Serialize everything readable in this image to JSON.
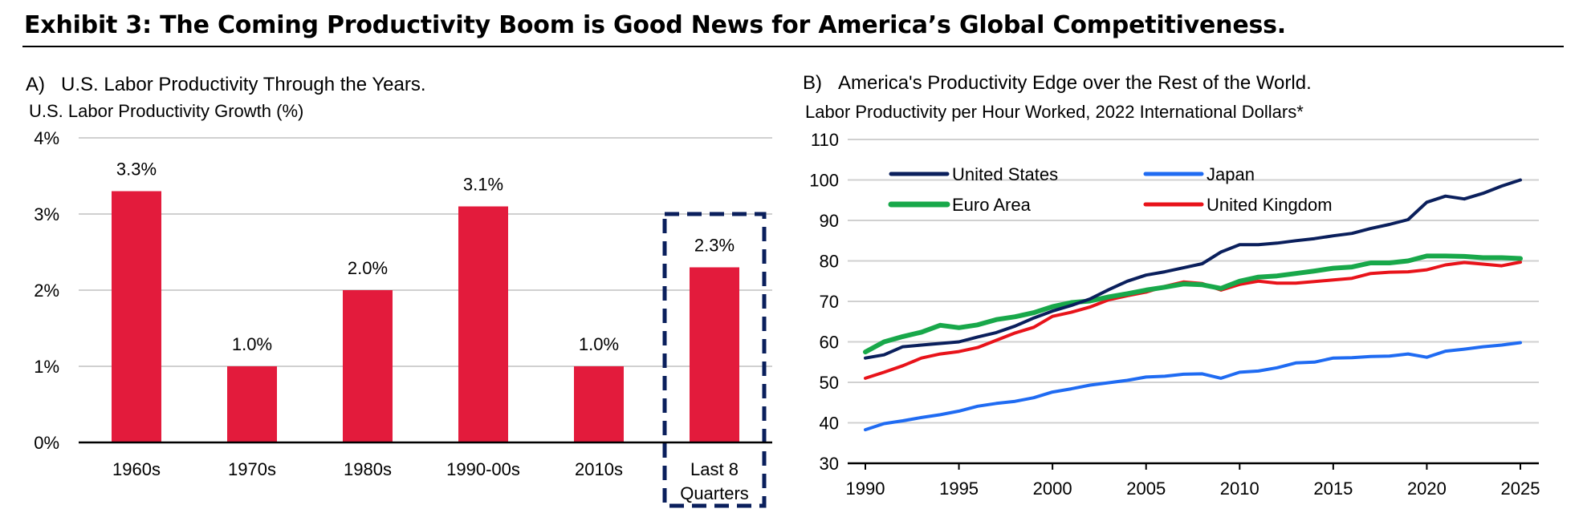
{
  "exhibit": {
    "title": "Exhibit 3: The Coming Productivity Boom is Good News for America’s Global Competitiveness."
  },
  "colors": {
    "bar": "#e31b3c",
    "us": "#0a1f5c",
    "japan": "#1f6bf2",
    "euro": "#18a84a",
    "uk": "#e8131a",
    "highlight": "#0a1f5c"
  },
  "panel_a": {
    "label": "A)",
    "title": "U.S. Labor Productivity Through the Years.",
    "subtitle": "U.S. Labor Productivity Growth (%)"
  },
  "panel_b": {
    "label": "B)",
    "title": "America's Productivity Edge over the Rest of the World.",
    "subtitle": "Labor Productivity per Hour Worked, 2022 International Dollars*"
  },
  "chart_data": [
    {
      "type": "bar",
      "title": "U.S. Labor Productivity Through the Years.",
      "ylabel": "U.S. Labor Productivity Growth (%)",
      "categories": [
        [
          "1960s"
        ],
        [
          "1970s"
        ],
        [
          "1980s"
        ],
        [
          "1990-00s"
        ],
        [
          "2010s"
        ],
        [
          "Last 8",
          "Quarters"
        ]
      ],
      "values": [
        3.3,
        1.0,
        2.0,
        3.1,
        1.0,
        2.3
      ],
      "data_labels": [
        "3.3%",
        "1.0%",
        "2.0%",
        "3.1%",
        "1.0%",
        "2.3%"
      ],
      "ylim": [
        0,
        4
      ],
      "yticks": [
        0,
        1,
        2,
        3,
        4
      ],
      "ytick_labels": [
        "0%",
        "1%",
        "2%",
        "3%",
        "4%"
      ],
      "highlighted_category": "Last 8 Quarters",
      "grid": true
    },
    {
      "type": "line",
      "title": "America's Productivity Edge over the Rest of the World.",
      "ylabel": "Labor Productivity per Hour Worked, 2022 International Dollars*",
      "x": [
        1990,
        1991,
        1992,
        1993,
        1994,
        1995,
        1996,
        1997,
        1998,
        1999,
        2000,
        2001,
        2002,
        2003,
        2004,
        2005,
        2006,
        2007,
        2008,
        2009,
        2010,
        2011,
        2012,
        2013,
        2014,
        2015,
        2016,
        2017,
        2018,
        2019,
        2020,
        2021,
        2022,
        2023,
        2024,
        2025
      ],
      "series": [
        {
          "name": "United States",
          "color_key": "us",
          "values": [
            56,
            56.8,
            58.8,
            59.2,
            59.6,
            60,
            61.2,
            62.3,
            63.9,
            65.9,
            67.6,
            69,
            70.6,
            72.9,
            75,
            76.5,
            77.3,
            78.3,
            79.3,
            82.2,
            84,
            84,
            84.4,
            85,
            85.5,
            86.2,
            86.8,
            88,
            89,
            90.2,
            94.5,
            96,
            95.3,
            96.7,
            98.5,
            100
          ]
        },
        {
          "name": "Japan",
          "color_key": "japan",
          "values": [
            38.3,
            39.8,
            40.5,
            41.3,
            42,
            42.9,
            44.1,
            44.8,
            45.3,
            46.2,
            47.6,
            48.4,
            49.3,
            49.9,
            50.5,
            51.3,
            51.5,
            52,
            52.1,
            51,
            52.5,
            52.8,
            53.6,
            54.8,
            55,
            56,
            56.1,
            56.4,
            56.5,
            57,
            56.2,
            57.7,
            58.2,
            58.8,
            59.2,
            59.8
          ]
        },
        {
          "name": "Euro Area",
          "color_key": "euro",
          "values": [
            57.5,
            60,
            61.3,
            62.4,
            64.1,
            63.5,
            64.2,
            65.5,
            66.2,
            67.2,
            68.7,
            69.7,
            70.1,
            71.1,
            71.9,
            72.8,
            73.5,
            74.3,
            74.1,
            73.2,
            75,
            76,
            76.3,
            76.9,
            77.5,
            78.2,
            78.5,
            79.5,
            79.5,
            80,
            81.2,
            81.2,
            81.1,
            80.8,
            80.8,
            80.6
          ]
        },
        {
          "name": "United Kingdom",
          "color_key": "uk",
          "values": [
            51,
            52.5,
            54.1,
            56,
            57,
            57.6,
            58.6,
            60.4,
            62.2,
            63.6,
            66.3,
            67.3,
            68.6,
            70.4,
            71.4,
            72.3,
            73.7,
            74.8,
            74.4,
            72.8,
            74.2,
            75,
            74.5,
            74.5,
            74.9,
            75.3,
            75.7,
            76.9,
            77.2,
            77.3,
            77.8,
            79,
            79.6,
            79.2,
            78.8,
            79.7
          ]
        }
      ],
      "legend": [
        "United States",
        "Japan",
        "Euro Area",
        "United Kingdom"
      ],
      "ylim": [
        30,
        110
      ],
      "yticks": [
        30,
        40,
        50,
        60,
        70,
        80,
        90,
        100,
        110
      ],
      "xticks": [
        1990,
        1995,
        2000,
        2005,
        2010,
        2015,
        2020,
        2025
      ],
      "xlim": [
        1990,
        2025
      ],
      "grid": true,
      "legend_position": "top-left"
    }
  ]
}
